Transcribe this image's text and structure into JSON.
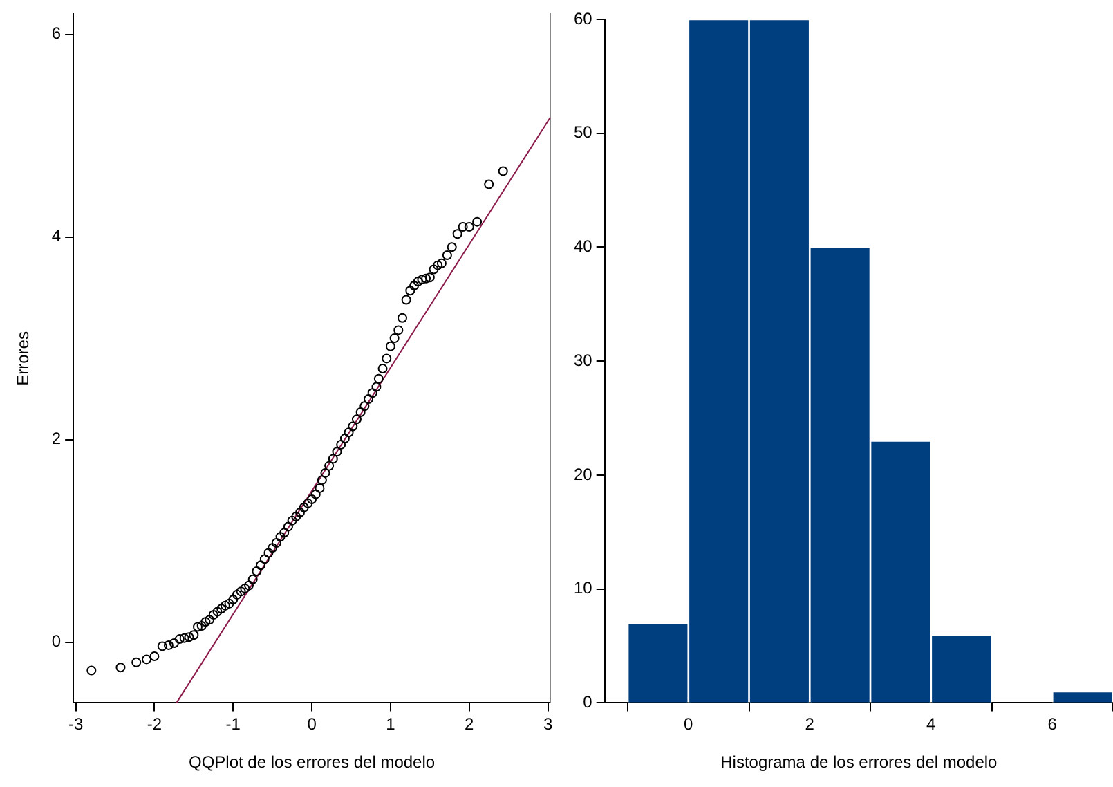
{
  "chart_data": [
    {
      "type": "scatter",
      "xlabel": "QQPlot de los errores del modelo",
      "ylabel": "Errores",
      "xlim": [
        -3.03,
        3.03
      ],
      "ylim": [
        -0.6,
        6.2
      ],
      "xticks": [
        -3,
        -2,
        -1,
        0,
        1,
        2,
        3
      ],
      "yticks": [
        0,
        2,
        4,
        6
      ],
      "series": [
        {
          "type": "scatter",
          "color": "#000000",
          "marker": "circle",
          "x": [
            -2.8,
            -2.43,
            -2.23,
            -2.1,
            -2.0,
            -1.9,
            -1.82,
            -1.75,
            -1.68,
            -1.62,
            -1.56,
            -1.5,
            -1.45,
            -1.4,
            -1.35,
            -1.3,
            -1.25,
            -1.2,
            -1.15,
            -1.1,
            -1.05,
            -1.0,
            -0.95,
            -0.9,
            -0.85,
            -0.8,
            -0.75,
            -0.7,
            -0.65,
            -0.6,
            -0.55,
            -0.5,
            -0.45,
            -0.4,
            -0.35,
            -0.3,
            -0.25,
            -0.2,
            -0.15,
            -0.1,
            -0.05,
            0.0,
            0.05,
            0.1,
            0.13,
            0.17,
            0.22,
            0.27,
            0.32,
            0.37,
            0.42,
            0.47,
            0.52,
            0.57,
            0.62,
            0.67,
            0.72,
            0.77,
            0.82,
            0.85,
            0.9,
            0.95,
            1.0,
            1.05,
            1.1,
            1.15,
            1.2,
            1.25,
            1.3,
            1.35,
            1.4,
            1.45,
            1.5,
            1.55,
            1.6,
            1.65,
            1.72,
            1.78,
            1.85,
            1.92,
            2.0,
            2.1,
            2.25,
            2.43
          ],
          "values": [
            -0.28,
            -0.25,
            -0.2,
            -0.17,
            -0.14,
            -0.04,
            -0.03,
            -0.01,
            0.03,
            0.04,
            0.05,
            0.07,
            0.15,
            0.16,
            0.2,
            0.22,
            0.27,
            0.3,
            0.33,
            0.36,
            0.38,
            0.42,
            0.47,
            0.5,
            0.53,
            0.56,
            0.62,
            0.7,
            0.76,
            0.82,
            0.88,
            0.93,
            0.98,
            1.04,
            1.08,
            1.14,
            1.2,
            1.24,
            1.28,
            1.33,
            1.37,
            1.41,
            1.46,
            1.52,
            1.6,
            1.67,
            1.74,
            1.81,
            1.88,
            1.95,
            2.01,
            2.07,
            2.13,
            2.2,
            2.27,
            2.33,
            2.4,
            2.46,
            2.52,
            2.6,
            2.7,
            2.8,
            2.92,
            3.0,
            3.08,
            3.2,
            3.38,
            3.47,
            3.52,
            3.56,
            3.58,
            3.59,
            3.6,
            3.68,
            3.72,
            3.74,
            3.82,
            3.9,
            4.03,
            4.1,
            4.1,
            4.15,
            4.52,
            4.65
          ]
        },
        {
          "type": "line",
          "color": "#8b1a4a",
          "x": [
            -1.72,
            3.03
          ],
          "values": [
            -0.6,
            5.18
          ]
        }
      ]
    },
    {
      "type": "histogram",
      "xlabel": "Histograma de los errores del modelo",
      "xlim": [
        -1.38,
        7
      ],
      "ylim": [
        0,
        60
      ],
      "xticks": [
        0,
        2,
        4,
        6
      ],
      "yticks": [
        0,
        10,
        20,
        30,
        40,
        50,
        60
      ],
      "color": "#003f7f",
      "bins": [
        -1,
        0,
        1,
        2,
        3,
        4,
        5,
        6,
        7
      ],
      "values": [
        7,
        60,
        60,
        40,
        23,
        6,
        0,
        1
      ]
    }
  ]
}
